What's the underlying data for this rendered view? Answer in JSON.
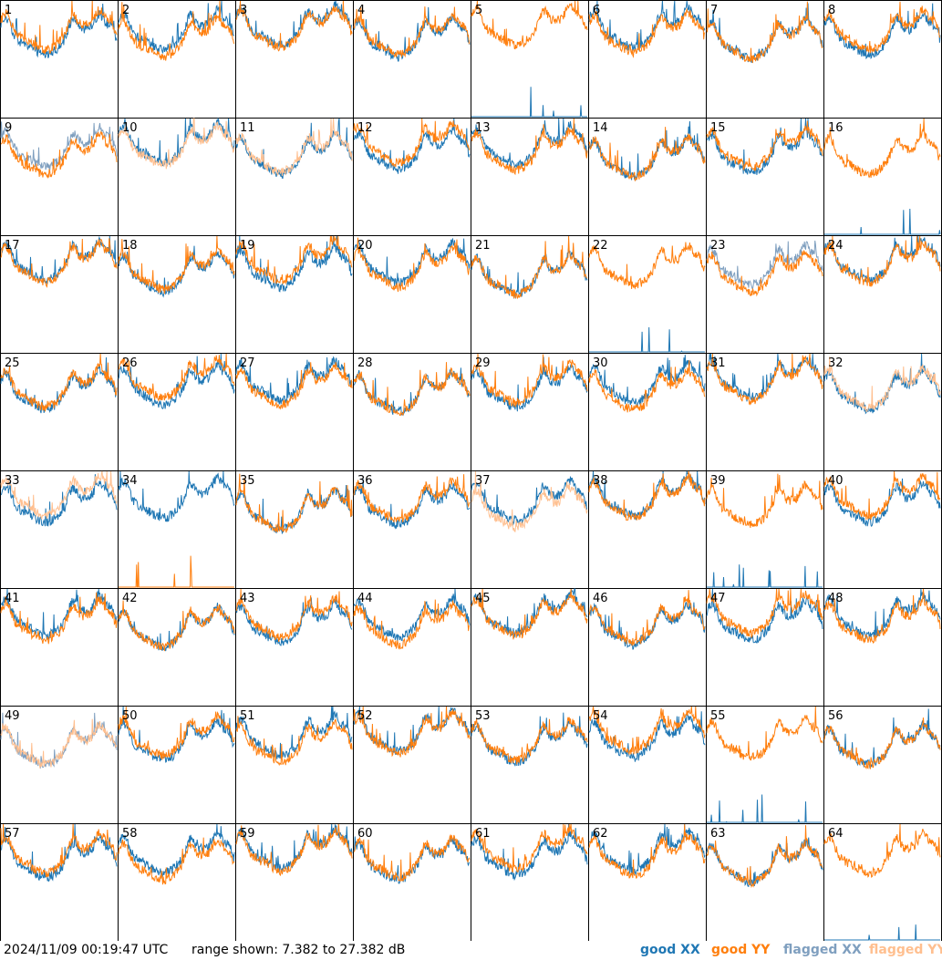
{
  "chart_data": {
    "type": "line",
    "panel_labels": [
      "1",
      "2",
      "3",
      "4",
      "5",
      "6",
      "7",
      "8",
      "9",
      "10",
      "11",
      "12",
      "13",
      "14",
      "15",
      "16",
      "17",
      "18",
      "19",
      "20",
      "21",
      "22",
      "23",
      "24",
      "25",
      "26",
      "27",
      "28",
      "29",
      "30",
      "31",
      "32",
      "33",
      "34",
      "35",
      "36",
      "37",
      "38",
      "39",
      "40",
      "41",
      "42",
      "43",
      "44",
      "45",
      "46",
      "47",
      "48",
      "49",
      "50",
      "51",
      "52",
      "53",
      "54",
      "55",
      "56",
      "57",
      "58",
      "59",
      "60",
      "61",
      "62",
      "63",
      "64"
    ],
    "y_range_db": [
      7.382,
      27.382
    ],
    "ylim": [
      7.382,
      27.382
    ],
    "grid": false,
    "legend_placement": "bottom-right",
    "series": [
      {
        "name": "good XX",
        "color": "#1f77b4"
      },
      {
        "name": "good YY",
        "color": "#ff7f0e"
      },
      {
        "name": "flagged XX",
        "color": "#7f9fbf"
      },
      {
        "name": "flagged YY",
        "color": "#ffbf8f"
      }
    ],
    "panel_status": {
      "flagged_xx": [
        "9",
        "23",
        "49"
      ],
      "flagged_yy": [
        "10",
        "11",
        "32",
        "33",
        "37",
        "49"
      ],
      "dropout_xx": [
        "5",
        "16",
        "22",
        "39",
        "55",
        "64"
      ],
      "dropout_yy": [
        "34"
      ]
    }
  },
  "footer": {
    "timestamp": "2024/11/09 00:19:47 UTC",
    "range_text": "range shown: 7.382 to 27.382 dB",
    "legend": {
      "good_xx": "good XX",
      "good_yy": "good YY",
      "flagged_xx": "flagged XX",
      "flagged_yy": "flagged YY"
    }
  }
}
